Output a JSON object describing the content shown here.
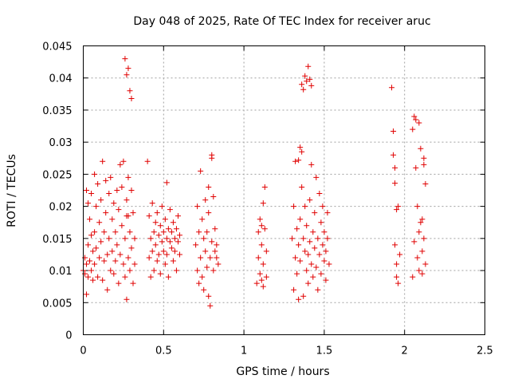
{
  "chart_data": {
    "type": "scatter",
    "title": "Day 048 of 2025, Rate Of TEC Index for receiver aruc",
    "xlabel": "GPS time / hours",
    "ylabel": "ROTI / TECUs",
    "xlim": [
      0,
      2.5
    ],
    "ylim": [
      0,
      0.045
    ],
    "xticks": [
      0,
      0.5,
      1,
      1.5,
      2,
      2.5
    ],
    "xtick_labels": [
      "0",
      "0.5",
      "1",
      "1.5",
      "2",
      "2.5"
    ],
    "yticks": [
      0,
      0.005,
      0.01,
      0.015,
      0.02,
      0.025,
      0.03,
      0.035,
      0.04,
      0.045
    ],
    "ytick_labels": [
      "0",
      "0.005",
      "0.01",
      "0.015",
      "0.02",
      "0.025",
      "0.03",
      "0.035",
      "0.04",
      "0.045"
    ],
    "grid": true,
    "marker": "+",
    "marker_color": "#e00000",
    "series": [
      {
        "name": "ROTI",
        "points": [
          [
            0.0,
            0.01
          ],
          [
            0.01,
            0.012
          ],
          [
            0.01,
            0.0095
          ],
          [
            0.02,
            0.0225
          ],
          [
            0.02,
            0.011
          ],
          [
            0.02,
            0.0063
          ],
          [
            0.03,
            0.0205
          ],
          [
            0.03,
            0.014
          ],
          [
            0.03,
            0.009
          ],
          [
            0.04,
            0.018
          ],
          [
            0.04,
            0.0115
          ],
          [
            0.05,
            0.0155
          ],
          [
            0.05,
            0.022
          ],
          [
            0.05,
            0.01
          ],
          [
            0.06,
            0.013
          ],
          [
            0.06,
            0.0085
          ],
          [
            0.07,
            0.025
          ],
          [
            0.07,
            0.016
          ],
          [
            0.07,
            0.011
          ],
          [
            0.08,
            0.02
          ],
          [
            0.08,
            0.0135
          ],
          [
            0.09,
            0.0235
          ],
          [
            0.09,
            0.009
          ],
          [
            0.1,
            0.0175
          ],
          [
            0.1,
            0.012
          ],
          [
            0.11,
            0.021
          ],
          [
            0.11,
            0.0145
          ],
          [
            0.12,
            0.0085
          ],
          [
            0.12,
            0.027
          ],
          [
            0.13,
            0.016
          ],
          [
            0.13,
            0.0115
          ],
          [
            0.14,
            0.024
          ],
          [
            0.14,
            0.019
          ],
          [
            0.15,
            0.0125
          ],
          [
            0.15,
            0.007
          ],
          [
            0.16,
            0.022
          ],
          [
            0.16,
            0.015
          ],
          [
            0.17,
            0.01
          ],
          [
            0.17,
            0.0245
          ],
          [
            0.18,
            0.018
          ],
          [
            0.18,
            0.013
          ],
          [
            0.19,
            0.0205
          ],
          [
            0.19,
            0.0095
          ],
          [
            0.2,
            0.016
          ],
          [
            0.2,
            0.0115
          ],
          [
            0.21,
            0.0225
          ],
          [
            0.21,
            0.014
          ],
          [
            0.22,
            0.008
          ],
          [
            0.22,
            0.0195
          ],
          [
            0.23,
            0.0265
          ],
          [
            0.23,
            0.0125
          ],
          [
            0.24,
            0.017
          ],
          [
            0.24,
            0.023
          ],
          [
            0.25,
            0.011
          ],
          [
            0.25,
            0.027
          ],
          [
            0.26,
            0.015
          ],
          [
            0.26,
            0.009
          ],
          [
            0.27,
            0.021
          ],
          [
            0.27,
            0.0185
          ],
          [
            0.28,
            0.0245
          ],
          [
            0.28,
            0.012
          ],
          [
            0.29,
            0.016
          ],
          [
            0.29,
            0.01
          ],
          [
            0.3,
            0.0225
          ],
          [
            0.3,
            0.0135
          ],
          [
            0.31,
            0.008
          ],
          [
            0.31,
            0.019
          ],
          [
            0.32,
            0.015
          ],
          [
            0.32,
            0.011
          ],
          [
            0.26,
            0.043
          ],
          [
            0.27,
            0.0405
          ],
          [
            0.28,
            0.0415
          ],
          [
            0.29,
            0.038
          ],
          [
            0.3,
            0.0368
          ],
          [
            0.27,
            0.0055
          ],
          [
            0.28,
            0.0185
          ],
          [
            0.4,
            0.027
          ],
          [
            0.41,
            0.012
          ],
          [
            0.41,
            0.0185
          ],
          [
            0.42,
            0.015
          ],
          [
            0.42,
            0.009
          ],
          [
            0.43,
            0.0205
          ],
          [
            0.43,
            0.013
          ],
          [
            0.44,
            0.016
          ],
          [
            0.44,
            0.01
          ],
          [
            0.45,
            0.0175
          ],
          [
            0.45,
            0.014
          ],
          [
            0.46,
            0.0115
          ],
          [
            0.46,
            0.019
          ],
          [
            0.47,
            0.0155
          ],
          [
            0.47,
            0.0125
          ],
          [
            0.48,
            0.017
          ],
          [
            0.48,
            0.0095
          ],
          [
            0.49,
            0.0145
          ],
          [
            0.49,
            0.02
          ],
          [
            0.5,
            0.013
          ],
          [
            0.5,
            0.016
          ],
          [
            0.51,
            0.011
          ],
          [
            0.51,
            0.018
          ],
          [
            0.52,
            0.015
          ],
          [
            0.52,
            0.0125
          ],
          [
            0.53,
            0.0165
          ],
          [
            0.53,
            0.009
          ],
          [
            0.54,
            0.0145
          ],
          [
            0.54,
            0.0195
          ],
          [
            0.55,
            0.0135
          ],
          [
            0.55,
            0.016
          ],
          [
            0.56,
            0.0115
          ],
          [
            0.56,
            0.0175
          ],
          [
            0.57,
            0.015
          ],
          [
            0.57,
            0.013
          ],
          [
            0.58,
            0.0165
          ],
          [
            0.58,
            0.01
          ],
          [
            0.59,
            0.0145
          ],
          [
            0.59,
            0.0185
          ],
          [
            0.6,
            0.0155
          ],
          [
            0.6,
            0.0125
          ],
          [
            0.52,
            0.0237
          ],
          [
            0.7,
            0.014
          ],
          [
            0.71,
            0.01
          ],
          [
            0.71,
            0.02
          ],
          [
            0.72,
            0.016
          ],
          [
            0.72,
            0.008
          ],
          [
            0.73,
            0.0255
          ],
          [
            0.73,
            0.012
          ],
          [
            0.74,
            0.018
          ],
          [
            0.74,
            0.009
          ],
          [
            0.75,
            0.015
          ],
          [
            0.75,
            0.007
          ],
          [
            0.76,
            0.021
          ],
          [
            0.76,
            0.013
          ],
          [
            0.77,
            0.0105
          ],
          [
            0.77,
            0.016
          ],
          [
            0.78,
            0.006
          ],
          [
            0.78,
            0.019
          ],
          [
            0.79,
            0.012
          ],
          [
            0.79,
            0.0045
          ],
          [
            0.8,
            0.0145
          ],
          [
            0.8,
            0.0275
          ],
          [
            0.81,
            0.01
          ],
          [
            0.81,
            0.0215
          ],
          [
            0.82,
            0.013
          ],
          [
            0.82,
            0.0165
          ],
          [
            0.83,
            0.012
          ],
          [
            0.83,
            0.014
          ],
          [
            0.84,
            0.011
          ],
          [
            0.78,
            0.023
          ],
          [
            0.8,
            0.028
          ],
          [
            1.08,
            0.008
          ],
          [
            1.09,
            0.012
          ],
          [
            1.09,
            0.016
          ],
          [
            1.1,
            0.0095
          ],
          [
            1.1,
            0.018
          ],
          [
            1.11,
            0.014
          ],
          [
            1.11,
            0.0085
          ],
          [
            1.12,
            0.0205
          ],
          [
            1.12,
            0.011
          ],
          [
            1.13,
            0.0165
          ],
          [
            1.13,
            0.023
          ],
          [
            1.14,
            0.013
          ],
          [
            1.14,
            0.009
          ],
          [
            1.12,
            0.0075
          ],
          [
            1.11,
            0.017
          ],
          [
            1.3,
            0.015
          ],
          [
            1.31,
            0.007
          ],
          [
            1.31,
            0.02
          ],
          [
            1.32,
            0.012
          ],
          [
            1.32,
            0.027
          ],
          [
            1.33,
            0.0165
          ],
          [
            1.33,
            0.0095
          ],
          [
            1.34,
            0.014
          ],
          [
            1.34,
            0.0055
          ],
          [
            1.35,
            0.018
          ],
          [
            1.35,
            0.0115
          ],
          [
            1.36,
            0.023
          ],
          [
            1.36,
            0.0285
          ],
          [
            1.37,
            0.015
          ],
          [
            1.37,
            0.006
          ],
          [
            1.38,
            0.013
          ],
          [
            1.38,
            0.02
          ],
          [
            1.39,
            0.01
          ],
          [
            1.39,
            0.017
          ],
          [
            1.4,
            0.0125
          ],
          [
            1.4,
            0.008
          ],
          [
            1.41,
            0.021
          ],
          [
            1.41,
            0.0145
          ],
          [
            1.42,
            0.011
          ],
          [
            1.42,
            0.0265
          ],
          [
            1.43,
            0.016
          ],
          [
            1.43,
            0.009
          ],
          [
            1.44,
            0.0135
          ],
          [
            1.44,
            0.019
          ],
          [
            1.45,
            0.0105
          ],
          [
            1.45,
            0.0245
          ],
          [
            1.46,
            0.015
          ],
          [
            1.46,
            0.007
          ],
          [
            1.47,
            0.022
          ],
          [
            1.47,
            0.0125
          ],
          [
            1.48,
            0.0175
          ],
          [
            1.48,
            0.0095
          ],
          [
            1.49,
            0.014
          ],
          [
            1.49,
            0.02
          ],
          [
            1.5,
            0.0115
          ],
          [
            1.5,
            0.016
          ],
          [
            1.51,
            0.013
          ],
          [
            1.51,
            0.0085
          ],
          [
            1.52,
            0.015
          ],
          [
            1.52,
            0.019
          ],
          [
            1.53,
            0.011
          ],
          [
            1.36,
            0.039
          ],
          [
            1.37,
            0.0382
          ],
          [
            1.38,
            0.0403
          ],
          [
            1.39,
            0.0395
          ],
          [
            1.4,
            0.0418
          ],
          [
            1.41,
            0.0398
          ],
          [
            1.42,
            0.0388
          ],
          [
            1.35,
            0.0292
          ],
          [
            1.34,
            0.0272
          ],
          [
            1.92,
            0.0385
          ],
          [
            1.93,
            0.0317
          ],
          [
            1.93,
            0.028
          ],
          [
            1.94,
            0.0236
          ],
          [
            1.94,
            0.014
          ],
          [
            1.95,
            0.011
          ],
          [
            1.95,
            0.009
          ],
          [
            1.96,
            0.02
          ],
          [
            1.96,
            0.008
          ],
          [
            1.97,
            0.0125
          ],
          [
            1.94,
            0.026
          ],
          [
            1.95,
            0.0195
          ],
          [
            2.05,
            0.032
          ],
          [
            2.06,
            0.034
          ],
          [
            2.07,
            0.0335
          ],
          [
            2.08,
            0.02
          ],
          [
            2.08,
            0.012
          ],
          [
            2.09,
            0.016
          ],
          [
            2.09,
            0.01
          ],
          [
            2.1,
            0.029
          ],
          [
            2.1,
            0.0175
          ],
          [
            2.11,
            0.013
          ],
          [
            2.11,
            0.0095
          ],
          [
            2.12,
            0.0265
          ],
          [
            2.12,
            0.015
          ],
          [
            2.13,
            0.0235
          ],
          [
            2.13,
            0.011
          ],
          [
            2.07,
            0.026
          ],
          [
            2.06,
            0.0145
          ],
          [
            2.05,
            0.009
          ],
          [
            2.09,
            0.033
          ],
          [
            2.11,
            0.018
          ],
          [
            2.12,
            0.0275
          ]
        ]
      }
    ]
  }
}
